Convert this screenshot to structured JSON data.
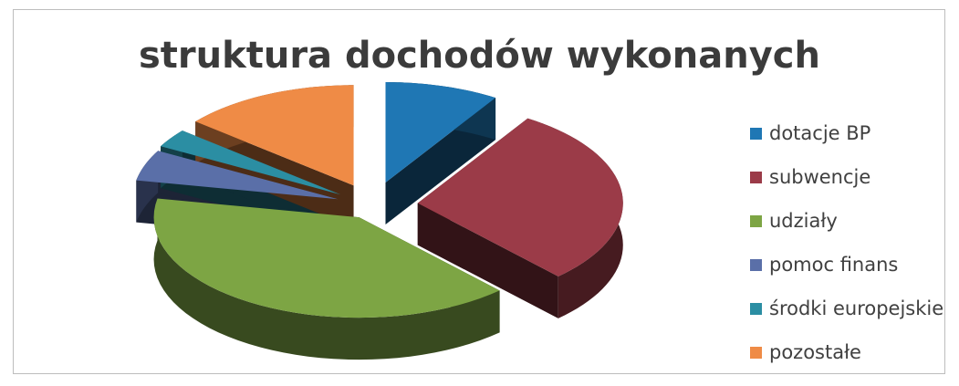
{
  "chart_data": {
    "type": "pie",
    "title": "struktura dochodów wykonanych",
    "slices": [
      {
        "name": "dotacje BP",
        "value": 9,
        "color": "#1f77b4"
      },
      {
        "name": "subwencje",
        "value": 29,
        "color": "#9b3b48"
      },
      {
        "name": "udziały",
        "value": 40,
        "color": "#7da544"
      },
      {
        "name": "pomoc finans",
        "value": 5,
        "color": "#5a6fa8"
      },
      {
        "name": "środki europejskie",
        "value": 3,
        "color": "#2b8ea3"
      },
      {
        "name": "pozostałe",
        "value": 14,
        "color": "#ef8b46"
      }
    ],
    "legend": "right",
    "style": "3d-exploded"
  }
}
